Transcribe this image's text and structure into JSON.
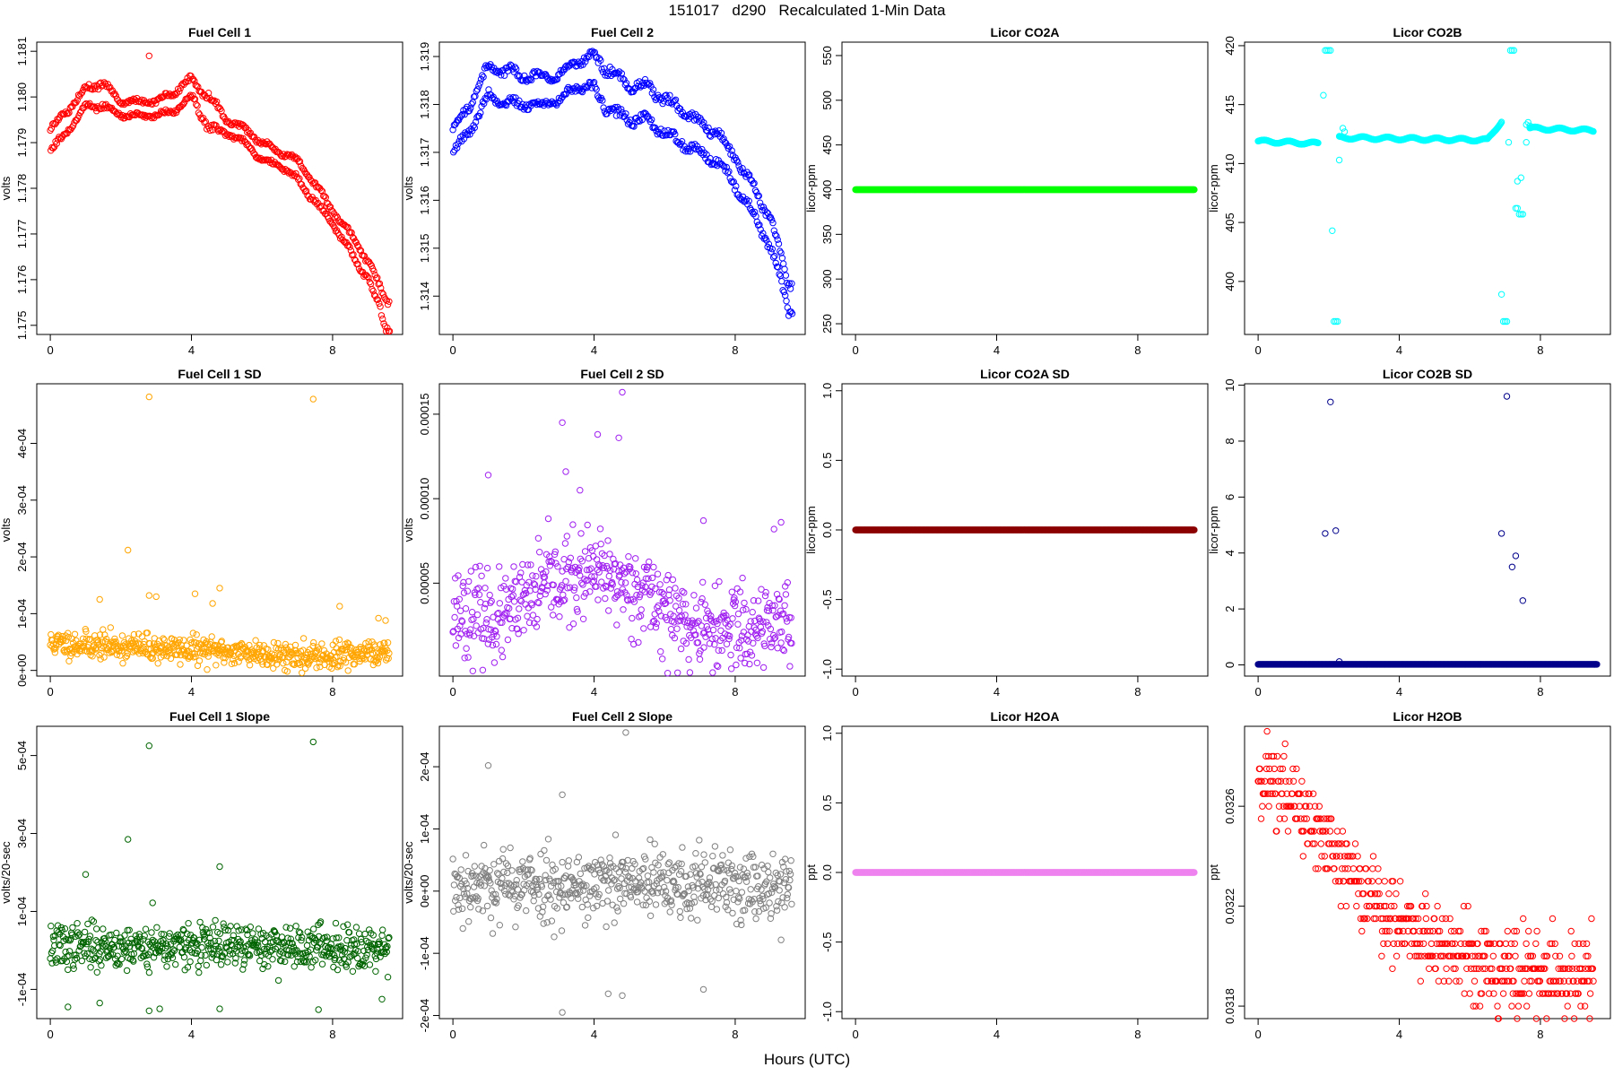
{
  "page": {
    "title": "151017   d290   Recalculated 1-Min Data",
    "xlabel": "Hours (UTC)"
  },
  "chart_data": [
    {
      "type": "scatter",
      "title": "Fuel Cell 1",
      "ylabel": "volts",
      "color": "#ff0000",
      "xlim": [
        0,
        9.6
      ],
      "xticks": [
        0,
        4,
        8
      ],
      "ylim": [
        1.1748,
        1.1812
      ],
      "yticks": [
        1.175,
        1.176,
        1.177,
        1.178,
        1.179,
        1.18,
        1.181
      ],
      "ytick_labels": [
        "1.175",
        "1.176",
        "1.177",
        "1.178",
        "1.179",
        "1.180",
        "1.181"
      ],
      "series": [
        {
          "kind": "dual_band",
          "x": [
            0,
            0.5,
            1,
            1.5,
            2,
            2.5,
            3,
            3.5,
            4,
            4.5,
            5,
            5.5,
            6,
            6.5,
            7,
            7.5,
            8,
            8.5,
            9,
            9.5
          ],
          "upper": [
            1.1793,
            1.1797,
            1.1802,
            1.1803,
            1.1799,
            1.1799,
            1.1799,
            1.1801,
            1.1804,
            1.18,
            1.1795,
            1.1793,
            1.179,
            1.1788,
            1.1786,
            1.1781,
            1.1775,
            1.177,
            1.1764,
            1.1756
          ],
          "lower": [
            1.1788,
            1.1793,
            1.1798,
            1.1798,
            1.1796,
            1.1796,
            1.1796,
            1.1797,
            1.18,
            1.1793,
            1.1792,
            1.179,
            1.1786,
            1.1785,
            1.1782,
            1.1777,
            1.1772,
            1.1766,
            1.176,
            1.175
          ],
          "outliers": [
            {
              "x": 2.8,
              "y": 1.1809
            }
          ]
        }
      ]
    },
    {
      "type": "scatter",
      "title": "Fuel Cell 2",
      "ylabel": "volts",
      "color": "#0000ff",
      "xlim": [
        0,
        9.6
      ],
      "xticks": [
        0,
        4,
        8
      ],
      "ylim": [
        1.3132,
        1.3193
      ],
      "yticks": [
        1.314,
        1.315,
        1.316,
        1.317,
        1.318,
        1.319
      ],
      "ytick_labels": [
        "1.314",
        "1.315",
        "1.316",
        "1.317",
        "1.318",
        "1.319"
      ],
      "series": [
        {
          "kind": "dual_band",
          "x": [
            0,
            0.5,
            1,
            1.5,
            2,
            2.5,
            3,
            3.5,
            4,
            4.5,
            5,
            5.5,
            6,
            6.5,
            7,
            7.5,
            8,
            8.5,
            9,
            9.5
          ],
          "upper": [
            1.3175,
            1.318,
            1.3188,
            1.3187,
            1.3186,
            1.3186,
            1.3186,
            1.3189,
            1.319,
            1.3187,
            1.3184,
            1.3184,
            1.3181,
            1.3179,
            1.3176,
            1.3174,
            1.3169,
            1.3163,
            1.3156,
            1.3143
          ],
          "lower": [
            1.317,
            1.3175,
            1.3182,
            1.318,
            1.318,
            1.318,
            1.3181,
            1.3184,
            1.3183,
            1.3178,
            1.3177,
            1.3177,
            1.3174,
            1.3172,
            1.317,
            1.3168,
            1.3163,
            1.3157,
            1.315,
            1.3137
          ],
          "outliers": []
        }
      ]
    },
    {
      "type": "scatter",
      "title": "Licor CO2A",
      "ylabel": "licor-ppm",
      "color": "#00ff00",
      "xlim": [
        0,
        9.6
      ],
      "xticks": [
        0,
        4,
        8
      ],
      "ylim": [
        238,
        565
      ],
      "yticks": [
        250,
        300,
        350,
        400,
        450,
        500,
        550
      ],
      "ytick_labels": [
        "250",
        "300",
        "350",
        "400",
        "450",
        "500",
        "550"
      ],
      "series": [
        {
          "kind": "constant",
          "value": 400,
          "x_range": [
            0,
            9.6
          ]
        }
      ]
    },
    {
      "type": "scatter",
      "title": "Licor CO2B",
      "ylabel": "licor-ppm",
      "color": "#00ffff",
      "xlim": [
        0,
        9.6
      ],
      "xticks": [
        0,
        4,
        8
      ],
      "ylim": [
        395.5,
        420.3
      ],
      "yticks": [
        400,
        405,
        410,
        415,
        420
      ],
      "ytick_labels": [
        "400",
        "405",
        "410",
        "415",
        "420"
      ],
      "series": [
        {
          "kind": "segments",
          "segments": [
            {
              "x0": 0.0,
              "x1": 1.7,
              "y0": 411.9,
              "y1": 411.7
            },
            {
              "x0": 2.3,
              "x1": 6.5,
              "y0": 412.2,
              "y1": 412.0
            },
            {
              "x0": 6.5,
              "x1": 6.9,
              "y0": 412.0,
              "y1": 413.6
            },
            {
              "x0": 7.7,
              "x1": 9.5,
              "y0": 413.0,
              "y1": 412.8
            }
          ],
          "extra_points": [
            [
              1.85,
              415.8
            ],
            [
              1.9,
              419.6
            ],
            [
              1.95,
              419.6
            ],
            [
              2.0,
              419.6
            ],
            [
              2.05,
              419.6
            ],
            [
              2.1,
              404.3
            ],
            [
              2.15,
              396.6
            ],
            [
              2.2,
              396.6
            ],
            [
              2.25,
              396.6
            ],
            [
              2.3,
              410.3
            ],
            [
              2.4,
              413.0
            ],
            [
              2.45,
              412.7
            ],
            [
              6.9,
              398.9
            ],
            [
              6.95,
              396.6
            ],
            [
              7.0,
              396.6
            ],
            [
              7.05,
              396.6
            ],
            [
              7.1,
              411.8
            ],
            [
              7.15,
              419.6
            ],
            [
              7.2,
              419.6
            ],
            [
              7.25,
              419.6
            ],
            [
              7.3,
              406.2
            ],
            [
              7.35,
              406.2
            ],
            [
              7.4,
              405.7
            ],
            [
              7.45,
              405.7
            ],
            [
              7.5,
              405.7
            ],
            [
              7.35,
              408.5
            ],
            [
              7.45,
              408.8
            ],
            [
              7.6,
              411.8
            ],
            [
              7.6,
              413.3
            ],
            [
              7.65,
              413.5
            ],
            [
              7.7,
              413.2
            ]
          ]
        }
      ]
    },
    {
      "type": "scatter",
      "title": "Fuel Cell 1 SD",
      "ylabel": "volts",
      "color": "#ffa500",
      "xlim": [
        0,
        9.6
      ],
      "xticks": [
        0,
        4,
        8
      ],
      "ylim": [
        -1e-05,
        0.000505
      ],
      "yticks": [
        0,
        0.0001,
        0.0002,
        0.0003,
        0.0004
      ],
      "ytick_labels": [
        "0e+00",
        "1e-04",
        "2e-04",
        "3e-04",
        "4e-04"
      ],
      "series": [
        {
          "kind": "noise_cloud",
          "n": 580,
          "seed": 11,
          "center": [
            4.8e-05,
            4.4e-05,
            4e-05,
            3.6e-05,
            3.2e-05,
            2.7e-05,
            2.6e-05,
            3.1e-05
          ],
          "spread": 1.7e-05,
          "outliers": [
            [
              2.8,
              0.000482
            ],
            [
              7.45,
              0.000478
            ],
            [
              2.2,
              0.000212
            ],
            [
              2.8,
              0.000132
            ],
            [
              3.0,
              0.00013
            ],
            [
              1.4,
              0.000125
            ],
            [
              4.1,
              0.000135
            ],
            [
              4.8,
              0.000145
            ],
            [
              8.2,
              0.000113
            ],
            [
              4.6,
              0.000118
            ],
            [
              9.3,
              9.2e-05
            ],
            [
              9.5,
              8.8e-05
            ]
          ]
        }
      ]
    },
    {
      "type": "scatter",
      "title": "Fuel Cell 2 SD",
      "ylabel": "volts",
      "color": "#a020f0",
      "xlim": [
        0,
        9.6
      ],
      "xticks": [
        0,
        4,
        8
      ],
      "ylim": [
        -5e-06,
        0.000168
      ],
      "yticks": [
        5e-05,
        0.0001,
        0.00015
      ],
      "ytick_labels": [
        "0.00005",
        "0.00010",
        "0.00015"
      ],
      "series": [
        {
          "kind": "noise_cloud",
          "n": 580,
          "seed": 23,
          "center": [
            3.5e-05,
            2.8e-05,
            5e-05,
            5.5e-05,
            4.5e-05,
            2e-05,
            2.5e-05,
            3e-05
          ],
          "spread": 1.8e-05,
          "outliers": [
            [
              4.8,
              0.000163
            ],
            [
              3.1,
              0.000145
            ],
            [
              4.1,
              0.000138
            ],
            [
              4.7,
              0.000136
            ],
            [
              3.2,
              0.000116
            ],
            [
              1.0,
              0.000114
            ],
            [
              3.6,
              0.000105
            ],
            [
              7.1,
              8.7e-05
            ],
            [
              9.1,
              8.2e-05
            ],
            [
              9.3,
              8.6e-05
            ]
          ]
        }
      ]
    },
    {
      "type": "scatter",
      "title": "Licor CO2A SD",
      "ylabel": "licor-ppm",
      "color": "#8b0000",
      "xlim": [
        0,
        9.6
      ],
      "xticks": [
        0,
        4,
        8
      ],
      "ylim": [
        -1.05,
        1.05
      ],
      "yticks": [
        -1.0,
        -0.5,
        0.0,
        0.5,
        1.0
      ],
      "ytick_labels": [
        "-1.0",
        "-0.5",
        "0.0",
        "0.5",
        "1.0"
      ],
      "series": [
        {
          "kind": "constant",
          "value": 0,
          "x_range": [
            0,
            9.6
          ]
        }
      ]
    },
    {
      "type": "scatter",
      "title": "Licor CO2B SD",
      "ylabel": "licor-ppm",
      "color": "#00008b",
      "xlim": [
        0,
        9.6
      ],
      "xticks": [
        0,
        4,
        8
      ],
      "ylim": [
        -0.4,
        10.05
      ],
      "yticks": [
        0,
        2,
        4,
        6,
        8,
        10
      ],
      "ytick_labels": [
        "0",
        "2",
        "4",
        "6",
        "8",
        "10"
      ],
      "series": [
        {
          "kind": "constant",
          "value": 0.02,
          "x_range": [
            0,
            9.6
          ],
          "extra_points": [
            [
              2.05,
              9.4
            ],
            [
              7.05,
              9.6
            ],
            [
              1.9,
              4.7
            ],
            [
              2.2,
              4.8
            ],
            [
              6.9,
              4.7
            ],
            [
              7.3,
              3.9
            ],
            [
              7.2,
              3.5
            ],
            [
              7.5,
              2.3
            ],
            [
              2.3,
              0.12
            ]
          ]
        }
      ]
    },
    {
      "type": "scatter",
      "title": "Fuel Cell 1 Slope",
      "ylabel": "volts/20-sec",
      "color": "#006400",
      "xlim": [
        0,
        9.6
      ],
      "xticks": [
        0,
        4,
        8
      ],
      "ylim": [
        -0.000175,
        0.000575
      ],
      "yticks": [
        -0.0001,
        0.0001,
        0.0003,
        0.0005
      ],
      "ytick_labels": [
        "-1e-04",
        "1e-04",
        "3e-04",
        "5e-04"
      ],
      "series": [
        {
          "kind": "noise_cloud",
          "n": 580,
          "seed": 37,
          "center": [
            1e-05,
            1e-05,
            1e-05,
            1e-05,
            1e-05,
            1e-05,
            1e-05,
            1e-05
          ],
          "spread": 4e-05,
          "outliers": [
            [
              2.8,
              0.000525
            ],
            [
              7.45,
              0.000535
            ],
            [
              2.2,
              0.000285
            ],
            [
              4.8,
              0.000215
            ],
            [
              1.0,
              0.000195
            ],
            [
              2.9,
              0.000122
            ],
            [
              0.5,
              -0.000145
            ],
            [
              1.4,
              -0.000135
            ],
            [
              2.8,
              -0.000155
            ],
            [
              3.1,
              -0.00015
            ],
            [
              4.8,
              -0.00015
            ],
            [
              7.6,
              -0.000152
            ],
            [
              9.4,
              -0.000125
            ]
          ]
        }
      ]
    },
    {
      "type": "scatter",
      "title": "Fuel Cell 2 Slope",
      "ylabel": "volts/20-sec",
      "color": "#808080",
      "xlim": [
        0,
        9.6
      ],
      "xticks": [
        0,
        4,
        8
      ],
      "ylim": [
        -0.000205,
        0.000265
      ],
      "yticks": [
        -0.0002,
        -0.0001,
        0.0,
        0.0001,
        0.0002
      ],
      "ytick_labels": [
        "-2e-04",
        "-1e-04",
        "0e+00",
        "1e-04",
        "2e-04"
      ],
      "series": [
        {
          "kind": "noise_cloud",
          "n": 580,
          "seed": 53,
          "center": [
            1e-05,
            1e-05,
            1e-05,
            1e-05,
            1e-05,
            1e-05,
            1e-05,
            1e-05
          ],
          "spread": 4.2e-05,
          "outliers": [
            [
              4.9,
              0.000255
            ],
            [
              1.0,
              0.000202
            ],
            [
              3.1,
              0.000155
            ],
            [
              3.1,
              -0.000195
            ],
            [
              4.4,
              -0.000165
            ],
            [
              4.8,
              -0.000168
            ],
            [
              7.1,
              -0.000158
            ]
          ]
        }
      ]
    },
    {
      "type": "scatter",
      "title": "Licor H2OA",
      "ylabel": "ppt",
      "color": "#ee82ee",
      "xlim": [
        0,
        9.6
      ],
      "xticks": [
        0,
        4,
        8
      ],
      "ylim": [
        -1.05,
        1.05
      ],
      "yticks": [
        -1.0,
        -0.5,
        0.0,
        0.5,
        1.0
      ],
      "ytick_labels": [
        "-1.0",
        "-0.5",
        "0.0",
        "0.5",
        "1.0"
      ],
      "series": [
        {
          "kind": "constant",
          "value": 0,
          "x_range": [
            0,
            9.6
          ]
        }
      ]
    },
    {
      "type": "scatter",
      "title": "Licor H2OB",
      "ylabel": "ppt",
      "color": "#ff0000",
      "xlim": [
        0,
        9.6
      ],
      "xticks": [
        0,
        4,
        8
      ],
      "ylim": [
        0.03175,
        0.03292
      ],
      "yticks": [
        0.0318,
        0.0322,
        0.0326
      ],
      "ytick_labels": [
        "0.0318",
        "0.0322",
        "0.0326"
      ],
      "series": [
        {
          "kind": "quantized_cloud",
          "n": 560,
          "seed": 71,
          "step": 0.0001,
          "trend_x": [
            0,
            1,
            2,
            3,
            4,
            5,
            6,
            7,
            8,
            9,
            9.5
          ],
          "trend_y": [
            0.03275,
            0.03262,
            0.03242,
            0.03228,
            0.03212,
            0.03205,
            0.032,
            0.03195,
            0.03192,
            0.0319,
            0.0319
          ],
          "spread": 9e-05
        }
      ]
    }
  ]
}
